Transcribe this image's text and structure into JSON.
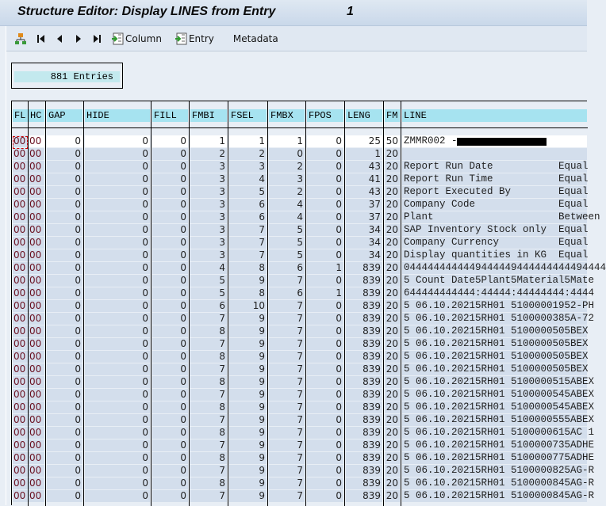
{
  "window": {
    "title": "Structure Editor: Display LINES from Entry",
    "entry_number": "1"
  },
  "toolbar": {
    "items": [
      {
        "name": "hierarchy-icon",
        "label": ""
      },
      {
        "name": "first-page-icon",
        "label": ""
      },
      {
        "name": "previous-page-icon",
        "label": ""
      },
      {
        "name": "next-page-icon",
        "label": ""
      },
      {
        "name": "last-page-icon",
        "label": ""
      },
      {
        "name": "column-button",
        "label": "Column"
      },
      {
        "name": "entry-button",
        "label": "Entry"
      },
      {
        "name": "metadata-button",
        "label": "Metadata"
      }
    ]
  },
  "entries_label": "881 Entries",
  "table": {
    "columns": [
      "FL",
      "HC",
      "GAP",
      "HIDE",
      "FILL",
      "FMBI",
      "FSEL",
      "FMBX",
      "FPOS",
      "LENG",
      "FM",
      "LINE"
    ],
    "rows": [
      [
        "00",
        "00",
        "0",
        "0",
        "0",
        "1",
        "1",
        "1",
        "0",
        "25",
        "50",
        "ZMMR002 -"
      ],
      [
        "00",
        "00",
        "0",
        "0",
        "0",
        "2",
        "2",
        "0",
        "0",
        "1",
        "20",
        ""
      ],
      [
        "00",
        "00",
        "0",
        "0",
        "0",
        "3",
        "3",
        "2",
        "0",
        "43",
        "20",
        "Report Run Date           Equal"
      ],
      [
        "00",
        "00",
        "0",
        "0",
        "0",
        "3",
        "4",
        "3",
        "0",
        "41",
        "20",
        "Report Run Time           Equal"
      ],
      [
        "00",
        "00",
        "0",
        "0",
        "0",
        "3",
        "5",
        "2",
        "0",
        "43",
        "20",
        "Report Executed By        Equal"
      ],
      [
        "00",
        "00",
        "0",
        "0",
        "0",
        "3",
        "6",
        "4",
        "0",
        "37",
        "20",
        "Company Code              Equal"
      ],
      [
        "00",
        "00",
        "0",
        "0",
        "0",
        "3",
        "6",
        "4",
        "0",
        "37",
        "20",
        "Plant                     Between"
      ],
      [
        "00",
        "00",
        "0",
        "0",
        "0",
        "3",
        "7",
        "5",
        "0",
        "34",
        "20",
        "SAP Inventory Stock only  Equal"
      ],
      [
        "00",
        "00",
        "0",
        "0",
        "0",
        "3",
        "7",
        "5",
        "0",
        "34",
        "20",
        "Company Currency          Equal"
      ],
      [
        "00",
        "00",
        "0",
        "0",
        "0",
        "3",
        "7",
        "5",
        "0",
        "34",
        "20",
        "Display quantities in KG  Equal"
      ],
      [
        "00",
        "00",
        "0",
        "0",
        "0",
        "4",
        "8",
        "6",
        "1",
        "839",
        "20",
        "0444444444449444449444444444494444"
      ],
      [
        "00",
        "00",
        "0",
        "0",
        "0",
        "5",
        "9",
        "7",
        "0",
        "839",
        "20",
        "5 Count Date5Plant5Material5Mate"
      ],
      [
        "00",
        "00",
        "0",
        "0",
        "0",
        "5",
        "8",
        "6",
        "1",
        "839",
        "20",
        "644444444444:44444:44444444:4444"
      ],
      [
        "00",
        "00",
        "0",
        "0",
        "0",
        "6",
        "10",
        "7",
        "0",
        "839",
        "20",
        "5 06.10.20215RH01 51000001952-PH"
      ],
      [
        "00",
        "00",
        "0",
        "0",
        "0",
        "7",
        "9",
        "7",
        "0",
        "839",
        "20",
        "5 06.10.20215RH01 5100000385A-72"
      ],
      [
        "00",
        "00",
        "0",
        "0",
        "0",
        "8",
        "9",
        "7",
        "0",
        "839",
        "20",
        "5 06.10.20215RH01 5100000505BEX"
      ],
      [
        "00",
        "00",
        "0",
        "0",
        "0",
        "7",
        "9",
        "7",
        "0",
        "839",
        "20",
        "5 06.10.20215RH01 5100000505BEX"
      ],
      [
        "00",
        "00",
        "0",
        "0",
        "0",
        "8",
        "9",
        "7",
        "0",
        "839",
        "20",
        "5 06.10.20215RH01 5100000505BEX"
      ],
      [
        "00",
        "00",
        "0",
        "0",
        "0",
        "7",
        "9",
        "7",
        "0",
        "839",
        "20",
        "5 06.10.20215RH01 5100000505BEX"
      ],
      [
        "00",
        "00",
        "0",
        "0",
        "0",
        "8",
        "9",
        "7",
        "0",
        "839",
        "20",
        "5 06.10.20215RH01 5100000515ABEX"
      ],
      [
        "00",
        "00",
        "0",
        "0",
        "0",
        "7",
        "9",
        "7",
        "0",
        "839",
        "20",
        "5 06.10.20215RH01 5100000545ABEX"
      ],
      [
        "00",
        "00",
        "0",
        "0",
        "0",
        "8",
        "9",
        "7",
        "0",
        "839",
        "20",
        "5 06.10.20215RH01 5100000545ABEX"
      ],
      [
        "00",
        "00",
        "0",
        "0",
        "0",
        "7",
        "9",
        "7",
        "0",
        "839",
        "20",
        "5 06.10.20215RH01 5100000555ABEX"
      ],
      [
        "00",
        "00",
        "0",
        "0",
        "0",
        "8",
        "9",
        "7",
        "0",
        "839",
        "20",
        "5 06.10.20215RH01 5100000615AC 1"
      ],
      [
        "00",
        "00",
        "0",
        "0",
        "0",
        "7",
        "9",
        "7",
        "0",
        "839",
        "20",
        "5 06.10.20215RH01 5100000735ADHE"
      ],
      [
        "00",
        "00",
        "0",
        "0",
        "0",
        "8",
        "9",
        "7",
        "0",
        "839",
        "20",
        "5 06.10.20215RH01 5100000775ADHE"
      ],
      [
        "00",
        "00",
        "0",
        "0",
        "0",
        "7",
        "9",
        "7",
        "0",
        "839",
        "20",
        "5 06.10.20215RH01 5100000825AG-R"
      ],
      [
        "00",
        "00",
        "0",
        "0",
        "0",
        "8",
        "9",
        "7",
        "0",
        "839",
        "20",
        "5 06.10.20215RH01 5100000845AG-R"
      ],
      [
        "00",
        "00",
        "0",
        "0",
        "0",
        "7",
        "9",
        "7",
        "0",
        "839",
        "20",
        "5 06.10.20215RH01 5100000845AG-R"
      ]
    ]
  }
}
